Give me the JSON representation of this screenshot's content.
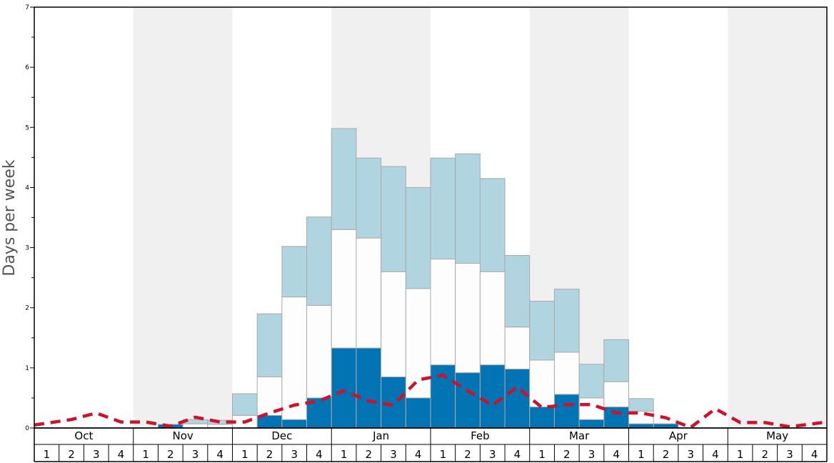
{
  "chart_data": {
    "type": "bar",
    "ylabel": "Days per week",
    "ylim": [
      0,
      7
    ],
    "yticks": [
      "0",
      "1",
      "2",
      "3",
      "4",
      "5",
      "6",
      "7"
    ],
    "months": [
      "Oct",
      "Nov",
      "Dec",
      "Jan",
      "Feb",
      "Mar",
      "Apr",
      "May"
    ],
    "weeks": [
      "1",
      "2",
      "3",
      "4"
    ],
    "grid": false,
    "legend": "none",
    "colors": {
      "dark": "#0274b4",
      "white": "#fdfdfd",
      "light": "#b0d4e0",
      "band": "#f0f0f0",
      "line": "#d0112b",
      "bar_border": "#aaaaaa"
    },
    "series": [
      {
        "values": [
          0,
          0,
          0,
          0,
          0,
          0.06,
          0,
          0,
          0,
          0.21,
          0.14,
          0.5,
          1.33,
          1.33,
          0.85,
          0.5,
          1.05,
          0.92,
          1.05,
          0.98,
          0.35,
          0.56,
          0.14,
          0.35,
          0.07,
          0.07,
          0,
          0,
          0,
          0,
          0,
          0
        ]
      },
      {
        "values": [
          0,
          0,
          0,
          0,
          0,
          0,
          0.07,
          0.06,
          0.21,
          0.64,
          2.04,
          1.54,
          1.97,
          1.83,
          1.75,
          1.82,
          1.76,
          1.82,
          1.55,
          0.7,
          0.78,
          0.7,
          0.36,
          0.42,
          0.21,
          0,
          0,
          0,
          0,
          0,
          0,
          0
        ]
      },
      {
        "values": [
          0,
          0,
          0,
          0,
          0,
          0,
          0.07,
          0.07,
          0.36,
          1.05,
          0.84,
          1.47,
          1.68,
          1.33,
          1.75,
          1.68,
          1.68,
          1.82,
          1.55,
          1.19,
          0.98,
          1.05,
          0.56,
          0.7,
          0.21,
          0,
          0,
          0,
          0,
          0,
          0,
          0
        ]
      },
      {
        "type": "line",
        "values": [
          0.05,
          0.14,
          0.25,
          0.1,
          0.1,
          0.03,
          0.18,
          0.1,
          0.1,
          0.25,
          0.38,
          0.45,
          0.62,
          0.45,
          0.38,
          0.8,
          0.88,
          0.62,
          0.38,
          0.68,
          0.34,
          0.39,
          0.39,
          0.25,
          0.25,
          0.17,
          0.01,
          0.32,
          0.09,
          0.09,
          0.02,
          0.1
        ]
      }
    ]
  }
}
